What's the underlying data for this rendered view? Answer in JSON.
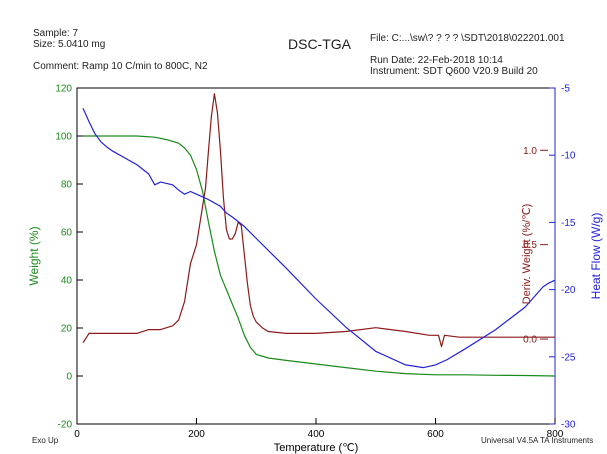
{
  "header": {
    "sample": "Sample: 7",
    "size": "Size: 5.0410 mg",
    "comment": "Comment: Ramp 10 C/min to 800C, N2",
    "title": "DSC-TGA",
    "file": "File: C:...\\sw\\? ?  ? ? \\SDT\\2018\\022201.001",
    "run_date": "Run Date: 22-Feb-2018 10:14",
    "instrument": "Instrument: SDT Q600 V20.9 Build 20"
  },
  "footer": {
    "exo": "Exo Up",
    "software": "Universal V4.5A TA Instruments"
  },
  "colors": {
    "weight": "#1a8a1a",
    "deriv": "#8b1a1a",
    "heat": "#2222dd",
    "axis": "#000000"
  },
  "chart_data": {
    "type": "line",
    "title": "DSC-TGA",
    "xlabel": "Temperature (℃)",
    "xlim": [
      0,
      800
    ],
    "x_ticks": [
      0,
      200,
      400,
      600,
      800
    ],
    "grid": false,
    "axes": {
      "left": {
        "label": "Weight (%)",
        "lim": [
          -20,
          120
        ],
        "ticks": [
          -20,
          0,
          20,
          40,
          60,
          80,
          100,
          120
        ],
        "color": "#1a8a1a"
      },
      "deriv": {
        "label": "Deriv. Weight (%/℃)",
        "lim": [
          -0.45,
          1.33
        ],
        "ticks": [
          0.0,
          0.5,
          1.0
        ],
        "tick_labels": [
          "0.0",
          "0.5",
          "1.0"
        ],
        "color": "#8b1a1a"
      },
      "right": {
        "label": "Heat Flow (W/g)",
        "lim": [
          -30,
          -5
        ],
        "ticks": [
          -30,
          -25,
          -20,
          -15,
          -10,
          -5
        ],
        "color": "#2222dd"
      }
    },
    "series": [
      {
        "axis": "left",
        "color": "#1a8a1a",
        "x": [
          10,
          50,
          100,
          130,
          150,
          170,
          180,
          190,
          200,
          210,
          220,
          230,
          240,
          250,
          260,
          270,
          280,
          290,
          300,
          320,
          350,
          400,
          450,
          500,
          550,
          600,
          650,
          700,
          750,
          800
        ],
        "values": [
          100,
          100,
          100,
          99.5,
          98.5,
          97,
          95,
          92,
          86,
          77,
          64,
          52,
          42,
          36,
          30,
          24,
          17,
          12,
          9,
          7.5,
          6.5,
          5,
          3.5,
          2,
          1,
          0.5,
          0.5,
          0.3,
          0.2,
          0
        ]
      },
      {
        "axis": "deriv",
        "color": "#8b1a1a",
        "x": [
          10,
          20,
          50,
          100,
          120,
          140,
          160,
          170,
          175,
          180,
          185,
          190,
          195,
          200,
          205,
          210,
          215,
          220,
          225,
          230,
          235,
          240,
          245,
          250,
          255,
          260,
          265,
          270,
          275,
          280,
          285,
          290,
          295,
          300,
          310,
          320,
          350,
          400,
          450,
          500,
          550,
          590,
          605,
          610,
          615,
          640,
          700,
          760,
          800
        ],
        "values": [
          -0.02,
          0.03,
          0.03,
          0.03,
          0.05,
          0.05,
          0.07,
          0.1,
          0.15,
          0.2,
          0.3,
          0.4,
          0.45,
          0.5,
          0.6,
          0.7,
          0.8,
          1.0,
          1.18,
          1.3,
          1.2,
          1.0,
          0.75,
          0.58,
          0.53,
          0.53,
          0.56,
          0.62,
          0.6,
          0.45,
          0.3,
          0.18,
          0.12,
          0.09,
          0.06,
          0.04,
          0.03,
          0.03,
          0.04,
          0.06,
          0.04,
          0.02,
          0.02,
          -0.04,
          0.02,
          0.01,
          0.01,
          0.01,
          0.01
        ]
      },
      {
        "axis": "right",
        "color": "#2222dd",
        "x": [
          10,
          20,
          30,
          40,
          50,
          60,
          80,
          100,
          120,
          130,
          140,
          160,
          170,
          180,
          190,
          200,
          220,
          240,
          250,
          260,
          280,
          300,
          350,
          400,
          450,
          500,
          550,
          580,
          600,
          620,
          650,
          700,
          750,
          780,
          790,
          800
        ],
        "values": [
          -6.5,
          -7.5,
          -8.4,
          -9,
          -9.4,
          -9.7,
          -10.2,
          -10.7,
          -11.4,
          -12.2,
          -12.0,
          -12.2,
          -12.6,
          -12.9,
          -12.7,
          -12.9,
          -13.3,
          -13.8,
          -14.3,
          -14.6,
          -15.3,
          -16.2,
          -18.4,
          -20.7,
          -22.8,
          -24.6,
          -25.6,
          -25.8,
          -25.6,
          -25.2,
          -24.4,
          -23.0,
          -21.3,
          -19.8,
          -19.5,
          -19.3
        ]
      }
    ]
  }
}
